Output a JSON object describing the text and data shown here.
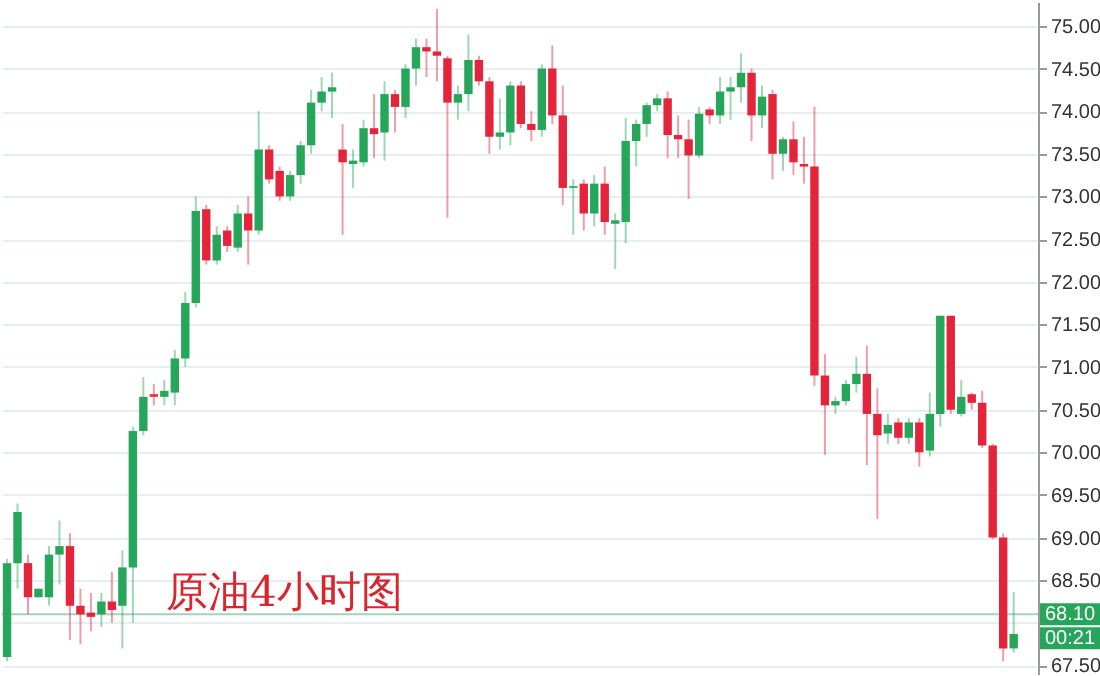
{
  "chart_data": {
    "type": "candlestick",
    "title": "原油4小时图",
    "categories": [
      null,
      null,
      null,
      null,
      null,
      null,
      null,
      null,
      null,
      null,
      null,
      null,
      null,
      null,
      null,
      null,
      null,
      null,
      null,
      null,
      null,
      null,
      null,
      null,
      null,
      null,
      null,
      null,
      null,
      null,
      null,
      null,
      null,
      null,
      null,
      null,
      null,
      null,
      null,
      null,
      null,
      null,
      null,
      null,
      null,
      null,
      null,
      null,
      null,
      null,
      null,
      null,
      null,
      null,
      null,
      null,
      null,
      null,
      null,
      null,
      null,
      null,
      null,
      null,
      null,
      null,
      null,
      null,
      null,
      null,
      null,
      null,
      null,
      null,
      null,
      null,
      null,
      null,
      null,
      null,
      null,
      null,
      null,
      null,
      null,
      null,
      null,
      null,
      null,
      null,
      null,
      null,
      null,
      null,
      null,
      null,
      null
    ],
    "ohlc": [
      [
        67.6,
        68.75,
        67.55,
        68.7
      ],
      [
        68.7,
        69.4,
        68.4,
        69.3
      ],
      [
        68.7,
        68.8,
        68.1,
        68.3
      ],
      [
        68.3,
        68.4,
        68.3,
        68.4
      ],
      [
        68.3,
        68.9,
        68.2,
        68.8
      ],
      [
        68.8,
        69.2,
        68.45,
        68.9
      ],
      [
        68.9,
        69.05,
        67.8,
        68.2
      ],
      [
        68.2,
        68.4,
        67.75,
        68.1
      ],
      [
        68.12,
        68.35,
        67.9,
        68.07
      ],
      [
        68.1,
        68.35,
        67.95,
        68.25
      ],
      [
        68.25,
        68.6,
        68.0,
        68.15
      ],
      [
        68.2,
        68.85,
        67.7,
        68.65
      ],
      [
        68.65,
        70.3,
        68.0,
        70.25
      ],
      [
        70.25,
        70.88,
        70.2,
        70.65
      ],
      [
        70.68,
        70.8,
        70.55,
        70.65
      ],
      [
        70.65,
        70.85,
        70.55,
        70.72
      ],
      [
        70.7,
        71.2,
        70.55,
        71.1
      ],
      [
        71.1,
        71.88,
        71.0,
        71.75
      ],
      [
        71.75,
        73.0,
        71.7,
        72.83
      ],
      [
        72.85,
        72.9,
        72.2,
        72.25
      ],
      [
        72.25,
        72.65,
        72.2,
        72.55
      ],
      [
        72.6,
        72.65,
        72.35,
        72.42
      ],
      [
        72.4,
        72.9,
        72.35,
        72.8
      ],
      [
        72.8,
        73.0,
        72.2,
        72.6
      ],
      [
        72.6,
        74.0,
        72.55,
        73.55
      ],
      [
        73.55,
        73.6,
        73.15,
        73.2
      ],
      [
        73.3,
        73.35,
        72.95,
        73.0
      ],
      [
        73.0,
        73.3,
        72.95,
        73.25
      ],
      [
        73.25,
        73.65,
        73.15,
        73.6
      ],
      [
        73.6,
        74.25,
        73.5,
        74.1
      ],
      [
        74.1,
        74.4,
        74.0,
        74.23
      ],
      [
        74.23,
        74.45,
        73.92,
        74.28
      ],
      [
        73.55,
        73.85,
        72.55,
        73.4
      ],
      [
        73.38,
        73.55,
        73.1,
        73.42
      ],
      [
        73.4,
        73.9,
        73.35,
        73.8
      ],
      [
        73.8,
        74.2,
        73.45,
        73.73
      ],
      [
        73.75,
        74.35,
        73.42,
        74.2
      ],
      [
        74.2,
        74.25,
        73.75,
        74.05
      ],
      [
        74.05,
        74.55,
        73.92,
        74.5
      ],
      [
        74.5,
        74.85,
        74.3,
        74.75
      ],
      [
        74.75,
        74.85,
        74.4,
        74.7
      ],
      [
        74.7,
        75.2,
        74.35,
        74.65
      ],
      [
        74.62,
        74.65,
        72.75,
        74.1
      ],
      [
        74.1,
        74.3,
        73.9,
        74.2
      ],
      [
        74.2,
        74.9,
        74.0,
        74.6
      ],
      [
        74.6,
        74.65,
        74.3,
        74.35
      ],
      [
        74.35,
        74.4,
        73.5,
        73.7
      ],
      [
        73.7,
        74.15,
        73.55,
        73.75
      ],
      [
        73.75,
        74.35,
        73.6,
        74.3
      ],
      [
        74.3,
        74.35,
        73.8,
        73.85
      ],
      [
        73.85,
        74.0,
        73.65,
        73.78
      ],
      [
        73.78,
        74.55,
        73.7,
        74.5
      ],
      [
        74.5,
        74.77,
        73.85,
        73.95
      ],
      [
        73.95,
        74.3,
        72.9,
        73.1
      ],
      [
        73.1,
        73.2,
        72.55,
        73.12
      ],
      [
        73.15,
        73.2,
        72.6,
        72.8
      ],
      [
        72.8,
        73.25,
        72.65,
        73.15
      ],
      [
        73.15,
        73.35,
        72.55,
        72.7
      ],
      [
        72.68,
        72.8,
        72.15,
        72.72
      ],
      [
        72.7,
        73.92,
        72.45,
        73.65
      ],
      [
        73.65,
        73.9,
        73.35,
        73.85
      ],
      [
        73.85,
        74.1,
        73.7,
        74.07
      ],
      [
        74.07,
        74.2,
        74.0,
        74.15
      ],
      [
        74.15,
        74.23,
        73.45,
        73.72
      ],
      [
        73.72,
        73.95,
        73.45,
        73.67
      ],
      [
        73.67,
        73.9,
        72.97,
        73.48
      ],
      [
        73.48,
        74.05,
        73.45,
        73.97
      ],
      [
        74.02,
        74.05,
        73.85,
        73.95
      ],
      [
        73.95,
        74.4,
        73.85,
        74.23
      ],
      [
        74.23,
        74.4,
        73.9,
        74.28
      ],
      [
        74.28,
        74.68,
        74.1,
        74.45
      ],
      [
        74.45,
        74.5,
        73.65,
        73.95
      ],
      [
        73.95,
        74.3,
        73.8,
        74.17
      ],
      [
        74.2,
        74.25,
        73.2,
        73.5
      ],
      [
        73.5,
        73.7,
        73.3,
        73.67
      ],
      [
        73.67,
        73.88,
        73.25,
        73.4
      ],
      [
        73.38,
        73.7,
        73.15,
        73.35
      ],
      [
        73.35,
        74.05,
        70.78,
        70.9
      ],
      [
        70.9,
        71.15,
        69.97,
        70.55
      ],
      [
        70.55,
        70.65,
        70.45,
        70.6
      ],
      [
        70.6,
        70.85,
        70.55,
        70.8
      ],
      [
        70.8,
        71.12,
        70.7,
        70.92
      ],
      [
        70.92,
        71.25,
        69.85,
        70.45
      ],
      [
        70.45,
        70.75,
        69.22,
        70.2
      ],
      [
        70.22,
        70.45,
        70.1,
        70.32
      ],
      [
        70.35,
        70.4,
        70.1,
        70.17
      ],
      [
        70.17,
        70.4,
        70.1,
        70.35
      ],
      [
        70.35,
        70.4,
        69.83,
        70.0
      ],
      [
        70.02,
        70.7,
        69.95,
        70.45
      ],
      [
        70.45,
        71.6,
        70.3,
        71.6
      ],
      [
        71.6,
        71.6,
        70.45,
        70.5
      ],
      [
        70.45,
        70.85,
        70.42,
        70.65
      ],
      [
        70.68,
        70.7,
        70.5,
        70.58
      ],
      [
        70.58,
        70.72,
        70.05,
        70.08
      ],
      [
        70.08,
        70.1,
        68.98,
        69.0
      ],
      [
        69.0,
        69.05,
        67.55,
        67.7
      ],
      [
        67.7,
        68.36,
        67.65,
        67.87
      ]
    ],
    "colors": [
      "#26a65b",
      "#26a65b",
      "#e3243b",
      "#26a65b",
      "#26a65b",
      "#26a65b",
      "#e3243b",
      "#e3243b",
      "#e3243b",
      "#26a65b",
      "#e3243b",
      "#26a65b",
      "#26a65b",
      "#26a65b",
      "#e3243b",
      "#26a65b",
      "#26a65b",
      "#26a65b",
      "#26a65b",
      "#e3243b",
      "#26a65b",
      "#e3243b",
      "#26a65b",
      "#e3243b",
      "#26a65b",
      "#e3243b",
      "#e3243b",
      "#26a65b",
      "#26a65b",
      "#26a65b",
      "#26a65b",
      "#26a65b",
      "#e3243b",
      "#26a65b",
      "#26a65b",
      "#e3243b",
      "#26a65b",
      "#e3243b",
      "#26a65b",
      "#26a65b",
      "#e3243b",
      "#e3243b",
      "#e3243b",
      "#26a65b",
      "#26a65b",
      "#e3243b",
      "#e3243b",
      "#26a65b",
      "#26a65b",
      "#e3243b",
      "#e3243b",
      "#26a65b",
      "#e3243b",
      "#e3243b",
      "#26a65b",
      "#e3243b",
      "#26a65b",
      "#e3243b",
      "#26a65b",
      "#26a65b",
      "#26a65b",
      "#26a65b",
      "#26a65b",
      "#e3243b",
      "#e3243b",
      "#e3243b",
      "#26a65b",
      "#e3243b",
      "#26a65b",
      "#26a65b",
      "#26a65b",
      "#e3243b",
      "#26a65b",
      "#e3243b",
      "#26a65b",
      "#e3243b",
      "#e3243b",
      "#e3243b",
      "#e3243b",
      "#26a65b",
      "#26a65b",
      "#26a65b",
      "#e3243b",
      "#e3243b",
      "#26a65b",
      "#e3243b",
      "#26a65b",
      "#e3243b",
      "#26a65b",
      "#26a65b",
      "#e3243b",
      "#26a65b",
      "#e3243b",
      "#e3243b",
      "#e3243b",
      "#e3243b",
      "#26a65b"
    ],
    "ylim": [
      67.4,
      75.28
    ],
    "yticks": [
      {
        "value": 67.5,
        "label": "67.50"
      },
      {
        "value": 68,
        "label": null
      },
      {
        "value": 68.5,
        "label": "68.50"
      },
      {
        "value": 69,
        "label": "69.00"
      },
      {
        "value": 69.5,
        "label": "69.50"
      },
      {
        "value": 70,
        "label": "70.00"
      },
      {
        "value": 70.5,
        "label": "70.50"
      },
      {
        "value": 71,
        "label": "71.00"
      },
      {
        "value": 71.5,
        "label": "71.50"
      },
      {
        "value": 72,
        "label": "72.00"
      },
      {
        "value": 72.5,
        "label": "72.50"
      },
      {
        "value": 73,
        "label": "73.00"
      },
      {
        "value": 73.5,
        "label": "73.50"
      },
      {
        "value": 74,
        "label": "74.00"
      },
      {
        "value": 74.5,
        "label": "74.50"
      },
      {
        "value": 75,
        "label": "75.00"
      }
    ],
    "grid": "y",
    "ref_lines": [
      {
        "axis": "y",
        "value": 68.1,
        "label": "68.10",
        "color": "#9fd6bb"
      }
    ],
    "annotations": [
      "00:21"
    ]
  }
}
